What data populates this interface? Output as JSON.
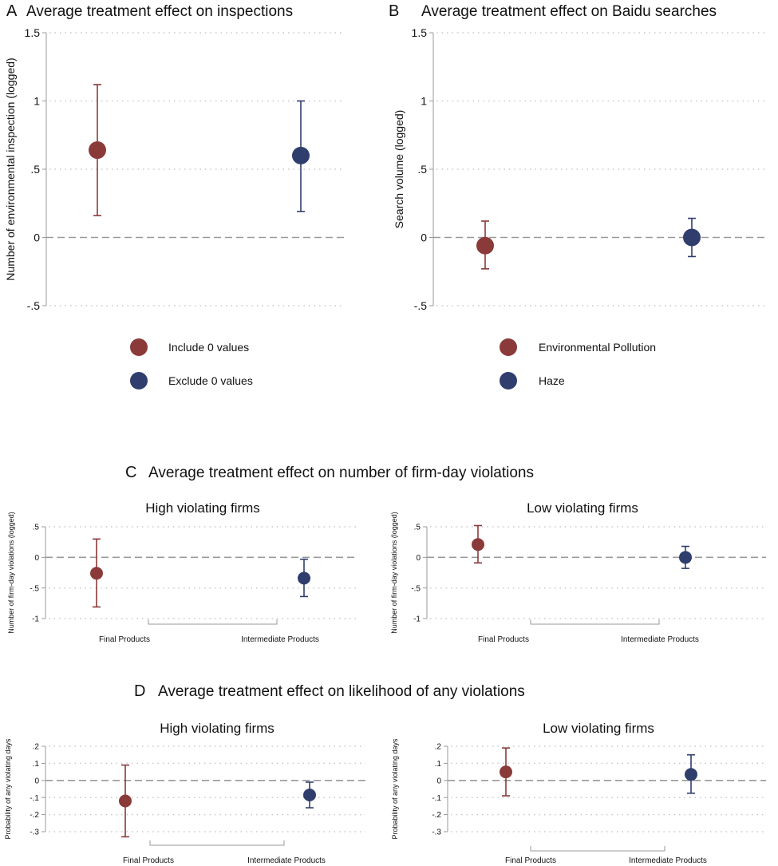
{
  "colors": {
    "maroon": "#8B3A3A",
    "navy": "#303E6E",
    "axis": "#999999",
    "grid": "#C8C8C8",
    "zero": "#999999"
  },
  "chart_data": [
    {
      "id": "A",
      "type": "scatter",
      "panel_letter": "A",
      "title": "Average treatment effect on inspections",
      "ylabel": "Number of environmental inspection (logged)",
      "ylim": [
        -0.5,
        1.5
      ],
      "yticks": [
        {
          "v": 1.5,
          "label": "1.5"
        },
        {
          "v": 1,
          "label": "1"
        },
        {
          "v": 0.5,
          "label": ".5"
        },
        {
          "v": 0,
          "label": "0"
        },
        {
          "v": -0.5,
          "label": "-.5"
        }
      ],
      "series": [
        {
          "name": "Include 0 values",
          "color": "maroon",
          "estimate": 0.64,
          "ci": [
            0.16,
            1.12
          ]
        },
        {
          "name": "Exclude 0 values",
          "color": "navy",
          "estimate": 0.6,
          "ci": [
            0.19,
            1.0
          ]
        }
      ]
    },
    {
      "id": "B",
      "type": "scatter",
      "panel_letter": "B",
      "title": "Average treatment effect on Baidu searches",
      "ylabel": "Search volume (logged)",
      "ylim": [
        -0.5,
        1.5
      ],
      "yticks": [
        {
          "v": 1.5,
          "label": "1.5"
        },
        {
          "v": 1,
          "label": "1"
        },
        {
          "v": 0.5,
          "label": ".5"
        },
        {
          "v": 0,
          "label": "0"
        },
        {
          "v": -0.5,
          "label": "-.5"
        }
      ],
      "series": [
        {
          "name": "Environmental Pollution",
          "color": "maroon",
          "estimate": -0.06,
          "ci": [
            -0.23,
            0.12
          ]
        },
        {
          "name": "Haze",
          "color": "navy",
          "estimate": 0.0,
          "ci": [
            -0.14,
            0.14
          ]
        }
      ]
    },
    {
      "id": "C",
      "type": "scatter",
      "panel_letter": "C",
      "title": "Average treatment effect on number of firm-day violations",
      "subplots": [
        {
          "subtitle": "High violating firms",
          "ylabel": "Number of firm-day violations (logged)",
          "ylim": [
            -1,
            0.5
          ],
          "yticks": [
            {
              "v": 0.5,
              "label": ".5"
            },
            {
              "v": 0,
              "label": "0"
            },
            {
              "v": -0.5,
              "label": "-.5"
            },
            {
              "v": -1,
              "label": "-1"
            }
          ],
          "categories": [
            "Final Products",
            "Intermediate Products"
          ],
          "points": [
            {
              "color": "maroon",
              "estimate": -0.26,
              "ci": [
                -0.81,
                0.3
              ]
            },
            {
              "color": "navy",
              "estimate": -0.34,
              "ci": [
                -0.64,
                -0.03
              ]
            }
          ]
        },
        {
          "subtitle": "Low violating firms",
          "ylabel": "Number of firm-day violations (logged)",
          "ylim": [
            -1,
            0.5
          ],
          "yticks": [
            {
              "v": 0.5,
              "label": ".5"
            },
            {
              "v": 0,
              "label": "0"
            },
            {
              "v": -0.5,
              "label": "-.5"
            },
            {
              "v": -1,
              "label": "-1"
            }
          ],
          "categories": [
            "Final Products",
            "Intermediate Products"
          ],
          "points": [
            {
              "color": "maroon",
              "estimate": 0.21,
              "ci": [
                -0.09,
                0.52
              ]
            },
            {
              "color": "navy",
              "estimate": 0.0,
              "ci": [
                -0.18,
                0.18
              ]
            }
          ]
        }
      ]
    },
    {
      "id": "D",
      "type": "scatter",
      "panel_letter": "D",
      "title": "Average treatment effect on likelihood of any violations",
      "subplots": [
        {
          "subtitle": "High violating firms",
          "ylabel": "Probability of any violating days",
          "ylim": [
            -0.3,
            0.2
          ],
          "yticks": [
            {
              "v": 0.2,
              "label": ".2"
            },
            {
              "v": 0.1,
              "label": ".1"
            },
            {
              "v": 0,
              "label": "0"
            },
            {
              "v": -0.1,
              "label": "-.1"
            },
            {
              "v": -0.2,
              "label": "-.2"
            },
            {
              "v": -0.3,
              "label": "-.3"
            }
          ],
          "categories": [
            "Final Products",
            "Intermediate Products"
          ],
          "points": [
            {
              "color": "maroon",
              "estimate": -0.12,
              "ci": [
                -0.33,
                0.09
              ]
            },
            {
              "color": "navy",
              "estimate": -0.085,
              "ci": [
                -0.16,
                -0.01
              ]
            }
          ]
        },
        {
          "subtitle": "Low violating firms",
          "ylabel": "Probability of any violating days",
          "ylim": [
            -0.3,
            0.2
          ],
          "yticks": [
            {
              "v": 0.2,
              "label": ".2"
            },
            {
              "v": 0.1,
              "label": ".1"
            },
            {
              "v": 0,
              "label": "0"
            },
            {
              "v": -0.1,
              "label": "-.1"
            },
            {
              "v": -0.2,
              "label": "-.2"
            },
            {
              "v": -0.3,
              "label": "-.3"
            }
          ],
          "categories": [
            "Final Products",
            "Intermediate Products"
          ],
          "points": [
            {
              "color": "maroon",
              "estimate": 0.05,
              "ci": [
                -0.09,
                0.19
              ]
            },
            {
              "color": "navy",
              "estimate": 0.035,
              "ci": [
                -0.075,
                0.15
              ]
            }
          ]
        }
      ]
    }
  ]
}
